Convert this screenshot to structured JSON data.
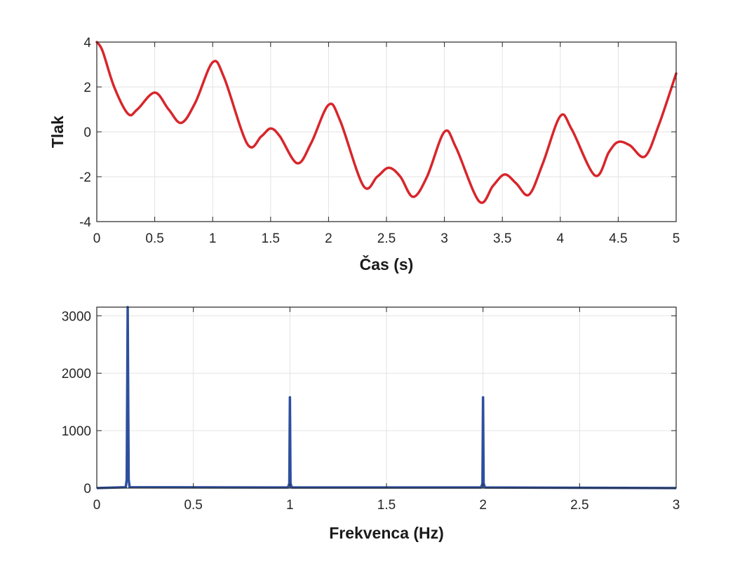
{
  "chart_data": [
    {
      "type": "line",
      "title": "",
      "xlabel": "Čas (s)",
      "ylabel": "Tlak",
      "xlim": [
        0,
        5
      ],
      "ylim": [
        -4,
        4
      ],
      "xticks": [
        "0",
        "0.5",
        "1",
        "1.5",
        "2",
        "2.5",
        "3",
        "3.5",
        "4",
        "4.5",
        "5"
      ],
      "yticks": [
        "-4",
        "-2",
        "0",
        "2",
        "4"
      ],
      "grid": true,
      "series": [
        {
          "color": "#d7262b",
          "x": [
            0,
            0.05,
            0.15,
            0.27,
            0.35,
            0.5,
            0.62,
            0.73,
            0.85,
            1.0,
            1.1,
            1.3,
            1.42,
            1.5,
            1.58,
            1.73,
            1.85,
            2.0,
            2.1,
            2.3,
            2.42,
            2.52,
            2.62,
            2.73,
            2.85,
            3.0,
            3.1,
            3.3,
            3.42,
            3.52,
            3.62,
            3.73,
            3.85,
            4.0,
            4.1,
            4.3,
            4.42,
            4.5,
            4.6,
            4.73,
            4.85,
            5.0
          ],
          "y": [
            4.0,
            3.6,
            2.0,
            0.8,
            1.0,
            1.75,
            1.0,
            0.4,
            1.3,
            3.1,
            2.4,
            -0.55,
            -0.2,
            0.15,
            -0.2,
            -1.4,
            -0.5,
            1.2,
            0.5,
            -2.4,
            -2.0,
            -1.6,
            -2.0,
            -2.9,
            -2.0,
            0.0,
            -0.7,
            -3.1,
            -2.4,
            -1.9,
            -2.3,
            -2.8,
            -1.4,
            0.7,
            0.1,
            -1.95,
            -0.9,
            -0.45,
            -0.6,
            -1.1,
            0.3,
            2.6
          ]
        }
      ]
    },
    {
      "type": "line",
      "title": "",
      "xlabel": "Frekvenca (Hz)",
      "ylabel": "",
      "xlim": [
        0,
        3
      ],
      "ylim": [
        0,
        3150
      ],
      "xticks": [
        "0",
        "0.5",
        "1",
        "1.5",
        "2",
        "2.5",
        "3"
      ],
      "yticks": [
        "0",
        "1000",
        "2000",
        "3000"
      ],
      "grid": true,
      "series": [
        {
          "color": "#2e4f9e",
          "x": [
            0,
            0.15,
            0.155,
            0.16,
            0.165,
            0.17,
            0.99,
            0.997,
            1.0,
            1.003,
            1.01,
            1.99,
            1.997,
            2.0,
            2.003,
            2.01,
            3.0
          ],
          "y": [
            0,
            15,
            150,
            3150,
            150,
            15,
            10,
            80,
            1580,
            80,
            10,
            10,
            80,
            1580,
            80,
            10,
            0
          ]
        }
      ]
    }
  ]
}
